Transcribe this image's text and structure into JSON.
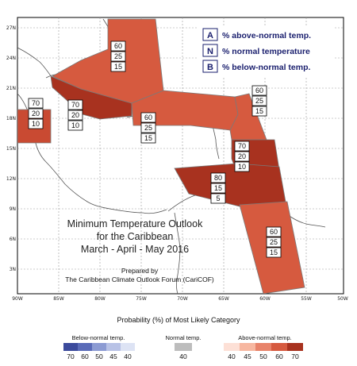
{
  "map": {
    "lon_ticks": [
      "90W",
      "85W",
      "80W",
      "75W",
      "70W",
      "65W",
      "60W",
      "55W",
      "50W"
    ],
    "lat_ticks": [
      "27N",
      "24N",
      "21N",
      "18N",
      "15N",
      "12N",
      "9N",
      "6N",
      "3N"
    ],
    "title_lines": [
      "Minimum Temperature Outlook",
      "for the Caribbean",
      "March - April - May 2016"
    ],
    "credit_lines": [
      "Prepared by",
      "The Caribbean Climate Outlook Forum (CariCOF)"
    ],
    "legend": [
      {
        "key": "A",
        "text": "% above-normal temp."
      },
      {
        "key": "N",
        "text": "% normal temperature"
      },
      {
        "key": "B",
        "text": "% below-normal temp."
      }
    ],
    "regions": [
      {
        "id": "belize-central-america",
        "above": "70",
        "normal": "20",
        "below": "10",
        "color": "#c94a32"
      },
      {
        "id": "western-caribbean",
        "above": "70",
        "normal": "20",
        "below": "10",
        "color": "#a8321f"
      },
      {
        "id": "bahamas-cuba",
        "above": "60",
        "normal": "25",
        "below": "15",
        "color": "#d65a3f"
      },
      {
        "id": "greater-antilles",
        "above": "60",
        "normal": "25",
        "below": "15",
        "color": "#d65a3f"
      },
      {
        "id": "northern-lesser-antilles",
        "above": "60",
        "normal": "25",
        "below": "15",
        "color": "#d65a3f"
      },
      {
        "id": "eastern-caribbean",
        "above": "70",
        "normal": "20",
        "below": "10",
        "color": "#a8321f"
      },
      {
        "id": "southern-caribbean",
        "above": "80",
        "normal": "15",
        "below": "5",
        "color": "#a8321f"
      },
      {
        "id": "guianas",
        "above": "60",
        "normal": "25",
        "below": "15",
        "color": "#d65a3f"
      }
    ]
  },
  "colorbar": {
    "title": "Probability (%) of Most Likely Category",
    "below": {
      "label": "Below-normal temp.",
      "swatches": [
        {
          "color": "#3b4a9c",
          "value": "70"
        },
        {
          "color": "#5a6bb8",
          "value": "60"
        },
        {
          "color": "#8c9bd3",
          "value": "50"
        },
        {
          "color": "#b8c2e6",
          "value": "45"
        },
        {
          "color": "#dde3f4",
          "value": "40"
        }
      ]
    },
    "normal": {
      "label": "Normal temp.",
      "swatches": [
        {
          "color": "#bdbdbd",
          "value": "40"
        }
      ]
    },
    "above": {
      "label": "Above-normal temp.",
      "swatches": [
        {
          "color": "#fde0d6",
          "value": "40"
        },
        {
          "color": "#f7b7a0",
          "value": "45"
        },
        {
          "color": "#e8836a",
          "value": "50"
        },
        {
          "color": "#d65a3f",
          "value": "60"
        },
        {
          "color": "#a8321f",
          "value": "70"
        }
      ]
    }
  }
}
